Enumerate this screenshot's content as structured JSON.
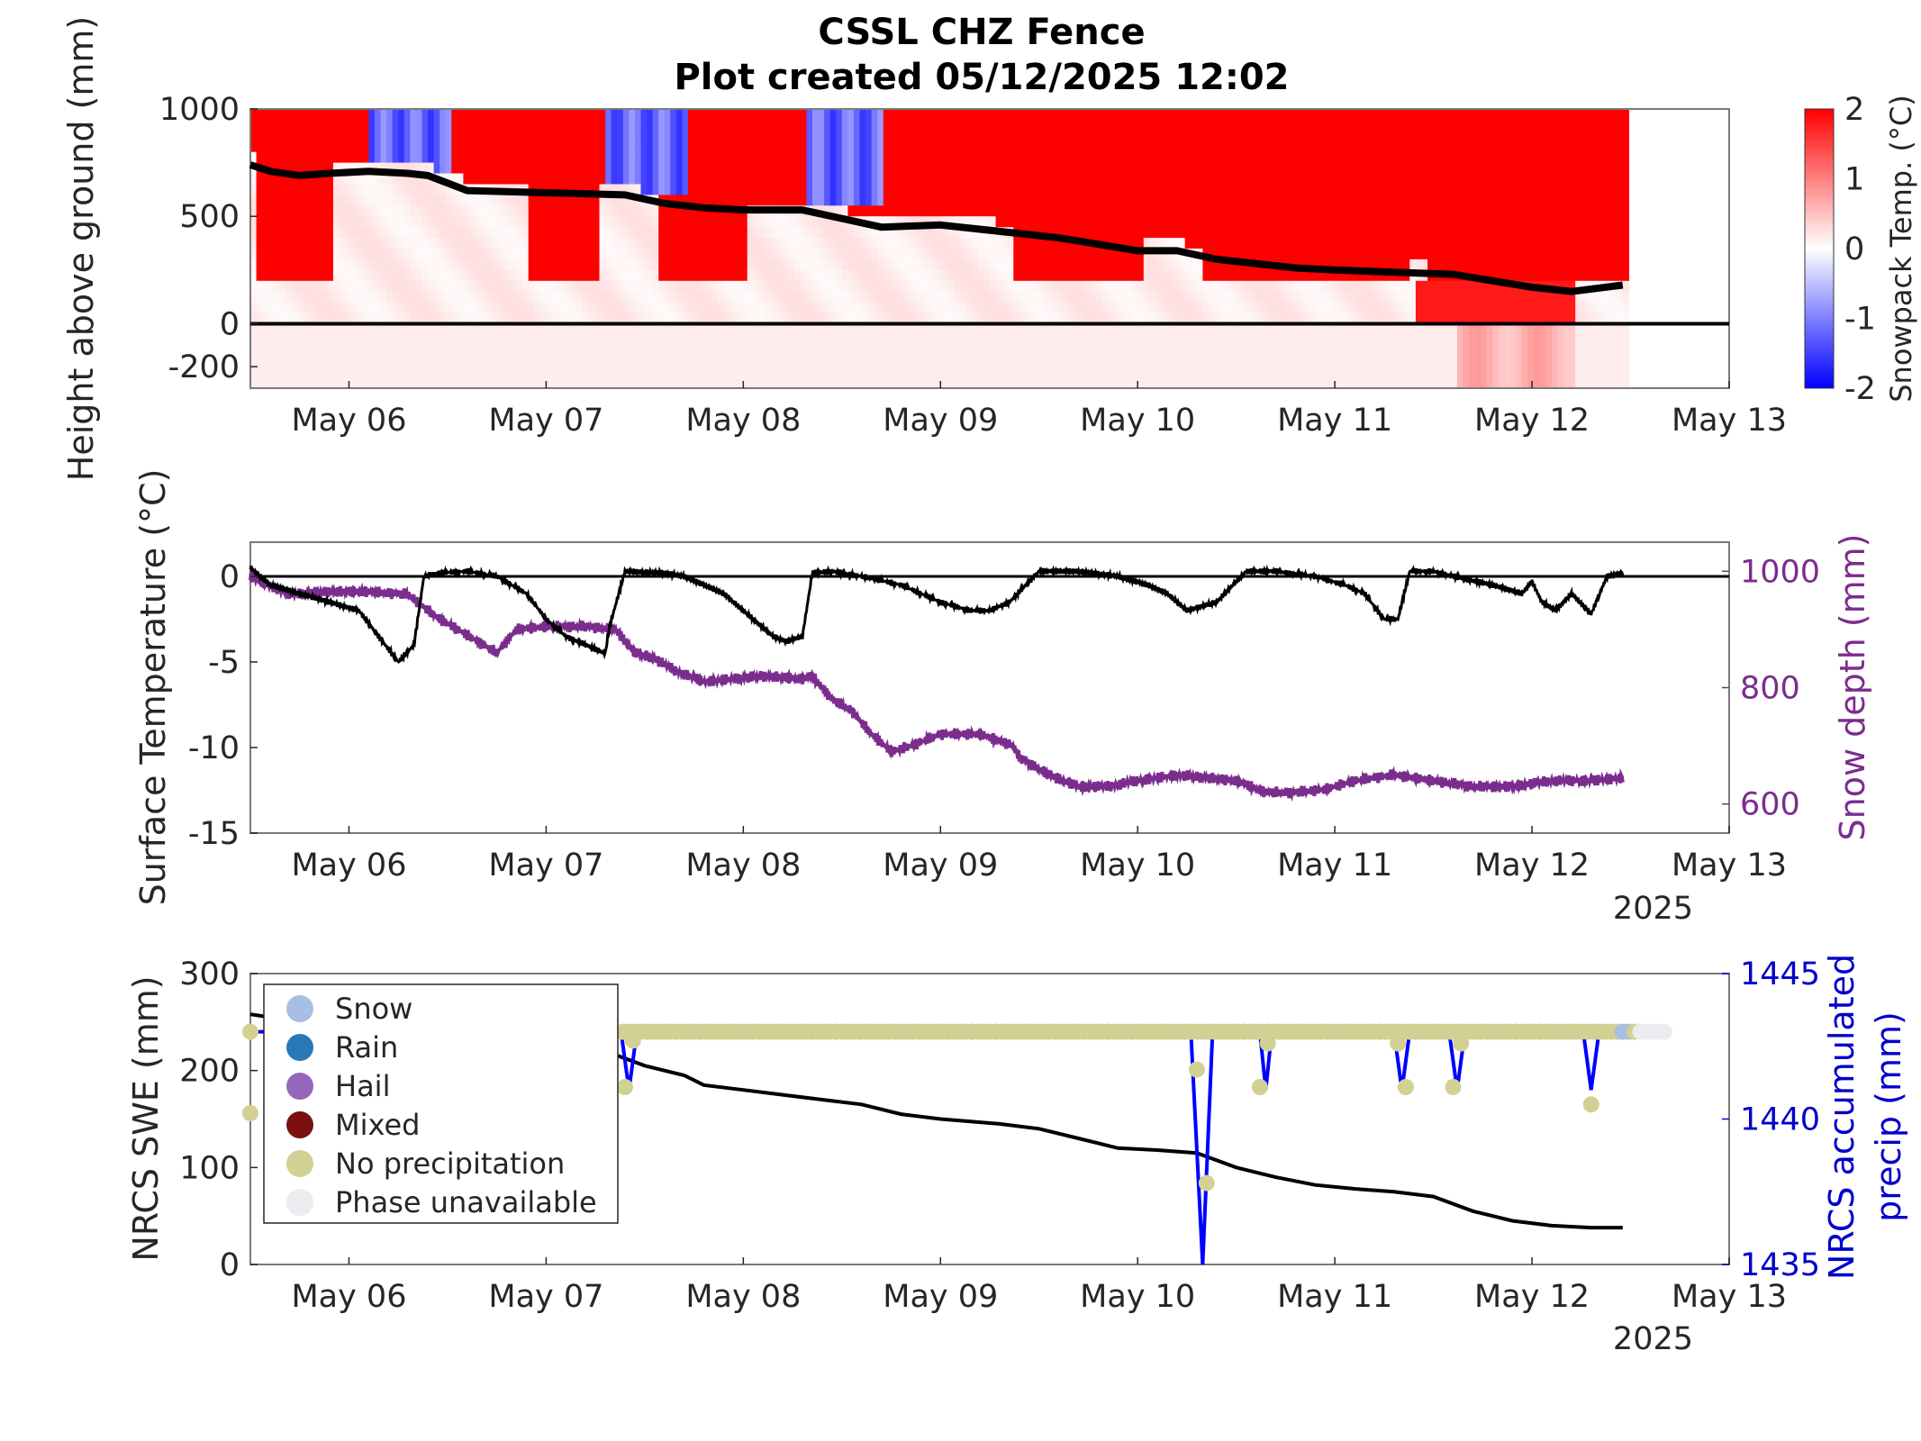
{
  "title_lines": [
    "CSSL CHZ Fence",
    "Plot created 05/12/2025 12:02"
  ],
  "colors": {
    "red": "#ff0000",
    "blue": "#0000ff",
    "depth": "#7b2d8e",
    "precip_axis": "#0000cc",
    "snow": "#a8bfe3",
    "rain": "#2a78b5",
    "hail": "#9467bd",
    "mixed": "#7a1010",
    "none": "#d2d193",
    "unavailable": "#ebecef"
  },
  "chart_data": [
    {
      "type": "heatmap",
      "ylabel": "Height above ground (mm)",
      "colorbar_label": "Snowpack Temp. (°C)",
      "colorbar_ticks": [
        "2",
        "1",
        "0",
        "-1",
        "-2"
      ],
      "colorbar_range": [
        -2,
        2
      ],
      "x_ticks": [
        "May 06",
        "May 07",
        "May 08",
        "May 09",
        "May 10",
        "May 11",
        "May 12",
        "May 13"
      ],
      "y_ticks": [
        "1000",
        "500",
        "0",
        "-200"
      ],
      "ylim": [
        -300,
        1000
      ],
      "xlim_days": [
        5.5,
        13.0
      ],
      "data_end_day": 12.46,
      "surface_line": {
        "x": [
          5.5,
          5.6,
          5.75,
          5.9,
          6.1,
          6.3,
          6.4,
          6.6,
          7.0,
          7.4,
          7.6,
          7.8,
          8.0,
          8.3,
          8.5,
          8.7,
          9.0,
          9.3,
          9.6,
          9.8,
          10.0,
          10.2,
          10.4,
          10.6,
          10.8,
          11.0,
          11.3,
          11.6,
          11.8,
          12.0,
          12.2,
          12.46
        ],
        "y": [
          740,
          710,
          690,
          700,
          710,
          700,
          690,
          620,
          610,
          600,
          560,
          540,
          530,
          530,
          490,
          450,
          460,
          430,
          400,
          370,
          340,
          340,
          300,
          280,
          260,
          250,
          240,
          230,
          200,
          170,
          150,
          180
        ]
      }
    },
    {
      "type": "line",
      "ylabel": "Surface Temperature (°C)",
      "y2label": "Snow depth (mm)",
      "x_ticks": [
        "May 06",
        "May 07",
        "May 08",
        "May 09",
        "May 10",
        "May 11",
        "May 12",
        "May 13"
      ],
      "year_label": "2025",
      "y_ticks": [
        "0",
        "-5",
        "-10",
        "-15"
      ],
      "y2_ticks": [
        "1000",
        "800",
        "600"
      ],
      "ylim": [
        -15,
        2
      ],
      "y2lim": [
        550,
        1050
      ],
      "series": [
        {
          "axis": "left",
          "x": [
            5.5,
            5.6,
            5.75,
            5.9,
            6.05,
            6.15,
            6.25,
            6.33,
            6.38,
            6.45,
            6.6,
            6.75,
            6.9,
            7.0,
            7.1,
            7.2,
            7.3,
            7.32,
            7.4,
            7.6,
            7.7,
            7.9,
            8.05,
            8.15,
            8.22,
            8.3,
            8.35,
            8.45,
            8.6,
            8.8,
            9.0,
            9.15,
            9.25,
            9.35,
            9.5,
            9.7,
            9.9,
            10.05,
            10.15,
            10.25,
            10.4,
            10.55,
            10.7,
            10.9,
            11.05,
            11.15,
            11.25,
            11.32,
            11.38,
            11.5,
            11.6,
            11.8,
            11.95,
            12.0,
            12.05,
            12.12,
            12.2,
            12.3,
            12.38,
            12.46
          ],
          "y": [
            0.5,
            -0.5,
            -1,
            -1.5,
            -2,
            -3.5,
            -5,
            -4,
            0,
            0.2,
            0.3,
            0,
            -1,
            -2.5,
            -3.5,
            -4,
            -4.5,
            -3,
            0.3,
            0.2,
            0,
            -1,
            -2.5,
            -3.5,
            -3.8,
            -3.5,
            0.2,
            0.3,
            0,
            -0.5,
            -1.5,
            -2,
            -2,
            -1.5,
            0.3,
            0.3,
            0,
            -0.5,
            -1,
            -2,
            -1.5,
            0.3,
            0.3,
            0,
            -0.5,
            -1,
            -2.5,
            -2.5,
            0.3,
            0.3,
            0,
            -0.5,
            -1,
            -0.3,
            -1.5,
            -2,
            -1,
            -2.2,
            0,
            0.2
          ]
        },
        {
          "axis": "right",
          "x": [
            5.5,
            5.7,
            5.9,
            6.1,
            6.3,
            6.45,
            6.55,
            6.65,
            6.75,
            6.85,
            7.0,
            7.2,
            7.35,
            7.45,
            7.55,
            7.65,
            7.8,
            7.95,
            8.1,
            8.3,
            8.35,
            8.45,
            8.55,
            8.65,
            8.75,
            8.85,
            9.0,
            9.2,
            9.37,
            9.4,
            9.55,
            9.7,
            9.85,
            10.0,
            10.2,
            10.35,
            10.5,
            10.65,
            10.8,
            10.95,
            11.1,
            11.3,
            11.5,
            11.7,
            11.9,
            12.1,
            12.3,
            12.46
          ],
          "y": [
            990,
            960,
            965,
            965,
            960,
            920,
            900,
            880,
            860,
            900,
            905,
            905,
            900,
            860,
            850,
            830,
            810,
            815,
            820,
            815,
            820,
            780,
            760,
            720,
            690,
            700,
            720,
            720,
            700,
            680,
            650,
            630,
            630,
            640,
            650,
            645,
            640,
            620,
            620,
            625,
            640,
            650,
            640,
            630,
            630,
            640,
            640,
            645
          ]
        }
      ]
    },
    {
      "type": "line",
      "ylabel": "NRCS SWE (mm)",
      "y2label": "NRCS accumulated precip (mm)",
      "x_ticks": [
        "May 06",
        "May 07",
        "May 08",
        "May 09",
        "May 10",
        "May 11",
        "May 12",
        "May 13"
      ],
      "year_label": "2025",
      "y_ticks": [
        "300",
        "200",
        "100",
        "0"
      ],
      "y2_ticks": [
        "1445",
        "1440",
        "1435"
      ],
      "ylim": [
        0,
        300
      ],
      "y2lim": [
        1435,
        1445
      ],
      "swe": {
        "x": [
          5.5,
          5.6,
          5.8,
          6.0,
          6.3,
          6.8,
          7.1,
          7.3,
          7.5,
          7.7,
          7.8,
          8.0,
          8.2,
          8.4,
          8.6,
          8.8,
          9.0,
          9.3,
          9.5,
          9.7,
          9.9,
          10.1,
          10.3,
          10.5,
          10.7,
          10.9,
          11.1,
          11.3,
          11.5,
          11.7,
          11.9,
          12.1,
          12.3,
          12.46
        ],
        "y": [
          258,
          255,
          252,
          250,
          248,
          245,
          240,
          220,
          205,
          195,
          185,
          180,
          175,
          170,
          165,
          155,
          150,
          145,
          140,
          130,
          120,
          118,
          115,
          100,
          90,
          82,
          78,
          75,
          70,
          55,
          45,
          40,
          38,
          38
        ]
      },
      "precip": {
        "x": [
          7.38,
          7.42,
          7.46,
          10.27,
          10.33,
          10.38,
          10.62,
          10.65,
          10.68,
          11.3,
          11.34,
          11.38,
          11.58,
          11.62,
          11.66,
          12.26,
          12.3,
          12.34
        ],
        "y": [
          1443.0,
          1441.0,
          1443.0,
          1443.0,
          1435.0,
          1443.0,
          1443.0,
          1441.0,
          1443.0,
          1443.0,
          1441.0,
          1443.0,
          1443.0,
          1441.0,
          1443.0,
          1443.0,
          1441.0,
          1443.0
        ]
      },
      "phase_points": {
        "y": 1443.0,
        "start_day": 5.5,
        "end_day": 12.68,
        "spacing_days": 0.03,
        "dips": [
          {
            "day": 5.5,
            "y": 1440.2
          },
          {
            "day": 7.4,
            "y": 1441.1
          },
          {
            "day": 7.44,
            "y": 1442.7
          },
          {
            "day": 10.3,
            "y": 1441.7
          },
          {
            "day": 10.35,
            "y": 1437.8
          },
          {
            "day": 10.62,
            "y": 1441.1
          },
          {
            "day": 10.66,
            "y": 1442.6
          },
          {
            "day": 11.32,
            "y": 1442.6
          },
          {
            "day": 11.36,
            "y": 1441.1
          },
          {
            "day": 11.6,
            "y": 1441.1
          },
          {
            "day": 11.64,
            "y": 1442.6
          },
          {
            "day": 12.3,
            "y": 1440.5
          }
        ],
        "snow_days": [
          12.46,
          12.5
        ],
        "unavailable_from_day": 12.52
      },
      "legend": [
        "Snow",
        "Rain",
        "Hail",
        "Mixed",
        "No precipitation",
        "Phase unavailable"
      ]
    }
  ]
}
